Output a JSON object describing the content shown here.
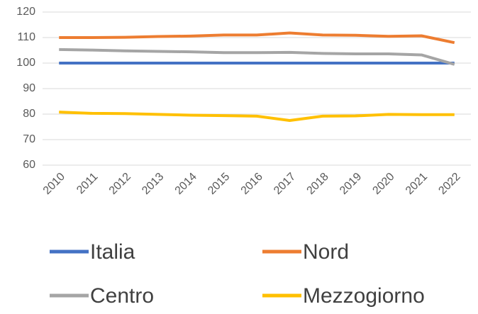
{
  "chart_data": {
    "type": "line",
    "categories": [
      "2010",
      "2011",
      "2012",
      "2013",
      "2014",
      "2015",
      "2016",
      "2017",
      "2018",
      "2019",
      "2020",
      "2021",
      "2022"
    ],
    "series": [
      {
        "name": "Italia",
        "color": "#4472c4",
        "values": [
          100,
          100,
          100,
          100,
          100,
          100,
          100,
          100,
          100,
          100,
          100,
          100,
          100
        ]
      },
      {
        "name": "Nord",
        "color": "#ed7d31",
        "values": [
          110,
          110,
          110.1,
          110.4,
          110.6,
          111,
          111,
          111.8,
          111,
          110.9,
          110.5,
          110.7,
          108
        ]
      },
      {
        "name": "Centro",
        "color": "#a5a5a5",
        "values": [
          105.3,
          105.1,
          104.8,
          104.6,
          104.4,
          104.1,
          104.1,
          104.2,
          103.8,
          103.6,
          103.6,
          103.2,
          99.5
        ]
      },
      {
        "name": "Mezzogiorno",
        "color": "#ffc000",
        "values": [
          80.8,
          80.3,
          80.2,
          79.9,
          79.6,
          79.4,
          79.2,
          77.5,
          79.2,
          79.3,
          79.9,
          79.8,
          79.8
        ]
      }
    ],
    "ylim": [
      60,
      120
    ],
    "yticks": [
      60,
      70,
      80,
      90,
      100,
      110,
      120
    ],
    "grid": true,
    "legend": "bottom"
  }
}
